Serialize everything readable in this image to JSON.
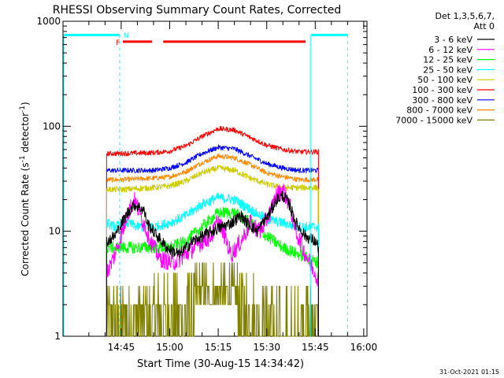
{
  "chart_data": {
    "type": "line",
    "title": "RHESSI Observing Summary Count Rates, Corrected",
    "xlabel": "Start Time (30-Aug-15 14:34:42)",
    "ylabel_main": "Corrected Count Rate (s",
    "ylabel_sup1": "-1",
    "ylabel_mid": " detector",
    "ylabel_sup2": "-1",
    "ylabel_end": ")",
    "yscale": "log",
    "ylim": [
      1,
      1000
    ],
    "xlim_minutes": [
      -8,
      86
    ],
    "x_ticks": [
      {
        "t": 10,
        "label": "14:45"
      },
      {
        "t": 25,
        "label": "15:00"
      },
      {
        "t": 40,
        "label": "15:15"
      },
      {
        "t": 55,
        "label": "15:30"
      },
      {
        "t": 70,
        "label": "15:45"
      },
      {
        "t": 85,
        "label": "16:00"
      }
    ],
    "y_ticks": [
      {
        "v": 1,
        "label": "1"
      },
      {
        "v": 10,
        "label": "10"
      },
      {
        "v": 100,
        "label": "100"
      },
      {
        "v": 1000,
        "label": "1000"
      }
    ],
    "legend": {
      "position": "top-right",
      "header1": "Det 1,3,5,6,7,",
      "header2": "Att 0",
      "entries": [
        {
          "label": "3 - 6 keV",
          "color": "#000000"
        },
        {
          "label": "6 - 12 keV",
          "color": "#ff00ff"
        },
        {
          "label": "12 - 25 keV",
          "color": "#00ff00"
        },
        {
          "label": "25 - 50 keV",
          "color": "#00ffff"
        },
        {
          "label": "50 - 100 keV",
          "color": "#cccc00"
        },
        {
          "label": "100 - 300 keV",
          "color": "#ff0000"
        },
        {
          "label": "300 - 800 keV",
          "color": "#0000ff"
        },
        {
          "label": "800 - 7000 keV",
          "color": "#ff8800"
        },
        {
          "label": "7000 - 15000 keV",
          "color": "#808000"
        }
      ]
    },
    "data_start": 5.5,
    "data_end": 71,
    "series": [
      {
        "name": "3 - 6 keV",
        "color": "#000000",
        "noise": 0.06,
        "t": [
          5.5,
          8,
          12,
          14,
          17,
          18,
          20,
          24,
          28,
          32,
          38,
          44,
          47,
          49,
          52,
          56,
          58,
          60,
          62,
          64,
          67,
          70,
          71
        ],
        "v": [
          8,
          9,
          15,
          18,
          16,
          12,
          10,
          7,
          6,
          8,
          10,
          12,
          14,
          12,
          10,
          15,
          20,
          22,
          18,
          12,
          9,
          8,
          7
        ]
      },
      {
        "name": "6 - 12 keV",
        "color": "#ff00ff",
        "noise": 0.09,
        "t": [
          5.5,
          7,
          10,
          12,
          14,
          17,
          19,
          22,
          26,
          30,
          35,
          38,
          40,
          42,
          44,
          47,
          50,
          53,
          56,
          58,
          60,
          62,
          64,
          67,
          70,
          71
        ],
        "v": [
          4,
          5,
          9,
          15,
          20,
          12,
          8,
          5.5,
          5,
          6,
          8,
          9,
          13,
          9,
          6,
          8,
          12,
          10,
          15,
          22,
          25,
          18,
          10,
          6,
          4,
          3.5
        ]
      },
      {
        "name": "12 - 25 keV",
        "color": "#00ff00",
        "noise": 0.06,
        "t": [
          5.5,
          10,
          20,
          25,
          30,
          35,
          40,
          45,
          50,
          55,
          60,
          65,
          71
        ],
        "v": [
          7,
          7,
          7,
          7,
          8,
          11,
          15,
          15,
          12,
          9,
          7,
          6,
          5
        ]
      },
      {
        "name": "25 - 50 keV",
        "color": "#00ffff",
        "noise": 0.05,
        "t": [
          5.5,
          8,
          12,
          15,
          20,
          25,
          30,
          35,
          40,
          45,
          50,
          55,
          60,
          65,
          71
        ],
        "v": [
          12,
          11,
          12,
          11,
          11,
          12,
          14,
          18,
          21,
          20,
          16,
          13,
          12,
          11,
          11
        ]
      },
      {
        "name": "50 - 100 keV",
        "color": "#cccc00",
        "noise": 0.03,
        "t": [
          5.5,
          10,
          20,
          25,
          30,
          35,
          40,
          45,
          50,
          55,
          60,
          65,
          71
        ],
        "v": [
          25,
          25,
          26,
          27,
          30,
          36,
          40,
          38,
          32,
          28,
          26,
          26,
          26
        ]
      },
      {
        "name": "100 - 300 keV",
        "color": "#ff0000",
        "noise": 0.025,
        "t": [
          5.5,
          10,
          20,
          25,
          30,
          35,
          40,
          45,
          50,
          55,
          60,
          65,
          71
        ],
        "v": [
          55,
          55,
          56,
          58,
          65,
          80,
          95,
          92,
          78,
          66,
          60,
          57,
          57
        ]
      },
      {
        "name": "300 - 800 keV",
        "color": "#0000ff",
        "noise": 0.025,
        "t": [
          5.5,
          10,
          20,
          25,
          30,
          35,
          40,
          45,
          50,
          55,
          60,
          65,
          71
        ],
        "v": [
          38,
          38,
          38,
          40,
          45,
          55,
          63,
          61,
          52,
          44,
          40,
          38,
          38
        ]
      },
      {
        "name": "800 - 7000 keV",
        "color": "#ff8800",
        "noise": 0.025,
        "t": [
          5.5,
          10,
          20,
          25,
          30,
          35,
          40,
          45,
          50,
          55,
          60,
          65,
          71
        ],
        "v": [
          31,
          31,
          32,
          33,
          37,
          45,
          52,
          50,
          43,
          36,
          33,
          31,
          31
        ]
      },
      {
        "name": "7000 - 15000 keV",
        "color": "#808000",
        "noise": 0.0,
        "quantized": true,
        "t": [
          5.5,
          10,
          20,
          25,
          30,
          35,
          40,
          45,
          50,
          55,
          60,
          65,
          71
        ],
        "v": [
          2.2,
          2.4,
          2.5,
          2.7,
          3.0,
          3.6,
          4.0,
          3.5,
          2.8,
          2.2,
          1.8,
          2.0,
          2.2
        ]
      }
    ],
    "flag_bars": {
      "color": "#ff0000",
      "segments": [
        [
          10.5,
          19.5
        ],
        [
          23,
          67
        ]
      ],
      "labels": [
        {
          "t": 9,
          "text": "F"
        },
        {
          "text": "N",
          "t": 11.5,
          "color": "#00ffff"
        }
      ]
    },
    "cyan_level": {
      "color": "#00ffff",
      "segments": [
        [
          -8,
          9.5
        ],
        [
          68.5,
          80
        ]
      ]
    },
    "cyan_vlines_solid": [
      -8,
      68.5
    ],
    "cyan_vlines_dashed": [
      9.5,
      80
    ],
    "footer_date": "31-Oct-2021 01:15"
  }
}
